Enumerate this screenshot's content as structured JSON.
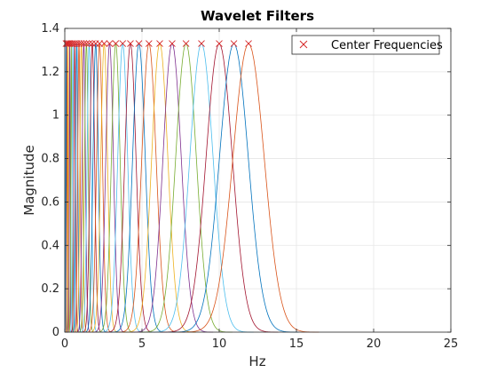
{
  "chart_data": {
    "type": "line",
    "title": "Wavelet Filters",
    "xlabel": "Hz",
    "ylabel": "Magnitude",
    "xlim": [
      0,
      25
    ],
    "ylim": [
      0,
      1.4
    ],
    "xticks": [
      "0",
      "5",
      "10",
      "15",
      "20",
      "25"
    ],
    "yticks": [
      "0",
      "0.2",
      "0.4",
      "0.6",
      "0.8",
      "1",
      "1.2",
      "1.4"
    ],
    "grid": true,
    "legend_position": "top-right",
    "peak_magnitude": 1.33,
    "center_frequencies": [
      0.08,
      0.15,
      0.23,
      0.32,
      0.42,
      0.53,
      0.65,
      0.78,
      0.92,
      1.07,
      1.23,
      1.4,
      1.58,
      1.78,
      2.0,
      2.25,
      2.55,
      2.9,
      3.3,
      3.75,
      4.25,
      4.8,
      5.45,
      6.15,
      6.95,
      7.85,
      8.85,
      10.0,
      10.95,
      11.9
    ],
    "series": [
      {
        "name": "Center Frequencies",
        "marker": "x",
        "color": "#d62728"
      }
    ]
  },
  "colors": {
    "cycle": [
      "#0072bd",
      "#d95319",
      "#edb120",
      "#7e2f8e",
      "#77ac30",
      "#4dbeee",
      "#a2142f"
    ],
    "grid": "#e6e6e6",
    "axis": "#262626",
    "marker": "#d62728"
  }
}
